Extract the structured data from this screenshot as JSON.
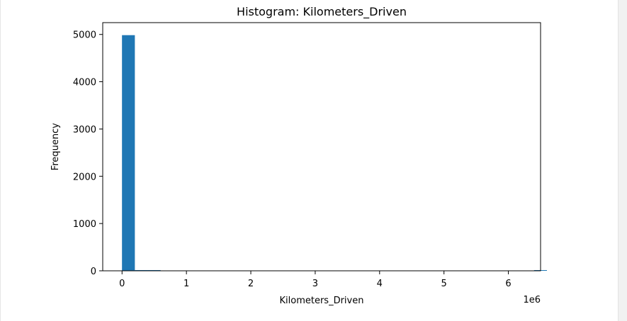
{
  "colors": {
    "bar": "#1f77b4",
    "axis": "#000000",
    "background": "#ffffff"
  },
  "chart_data": {
    "type": "bar",
    "title": "Histogram: Kilometers_Driven",
    "xlabel": "Kilometers_Driven",
    "ylabel": "Frequency",
    "x_offset_text": "1e6",
    "x_scale": 1000000,
    "xlim": [
      -0.3,
      6.5
    ],
    "ylim": [
      0,
      5250
    ],
    "x_ticks": [
      0,
      1,
      2,
      3,
      4,
      5,
      6
    ],
    "y_ticks": [
      0,
      1000,
      2000,
      3000,
      4000,
      5000
    ],
    "bin_start": -0.001,
    "bin_width": 0.2,
    "values": [
      4985,
      12,
      3,
      0,
      0,
      0,
      0,
      0,
      0,
      0,
      0,
      0,
      0,
      0,
      0,
      0,
      0,
      0,
      0,
      0,
      0,
      0,
      0,
      0,
      0,
      0,
      0,
      0,
      0,
      0,
      0,
      0,
      1
    ],
    "grid": false,
    "legend": "none"
  }
}
